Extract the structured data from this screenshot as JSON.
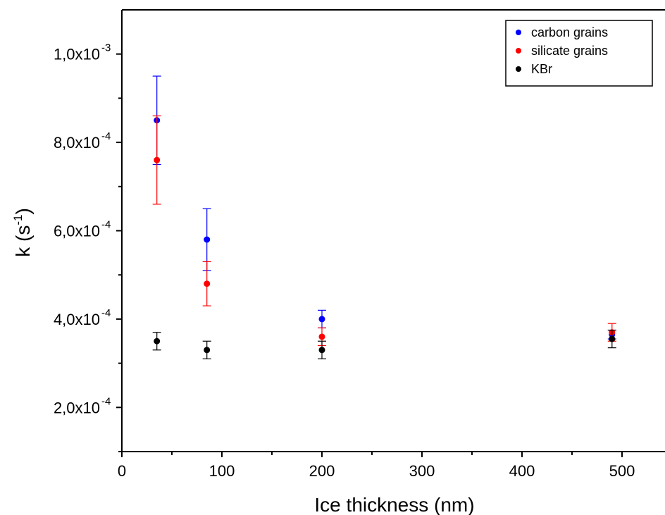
{
  "chart_data": {
    "type": "scatter",
    "title": "",
    "xlabel": "Ice thickness (nm)",
    "ylabel": {
      "base": "k (s",
      "sup": "-1",
      "close": ")"
    },
    "xlim": [
      0,
      540
    ],
    "ylim": [
      0.0001,
      0.0011
    ],
    "x_ticks": [
      {
        "value": 0,
        "label": "0"
      },
      {
        "value": 100,
        "label": "100"
      },
      {
        "value": 200,
        "label": "200"
      },
      {
        "value": 300,
        "label": "300"
      },
      {
        "value": 400,
        "label": "400"
      },
      {
        "value": 500,
        "label": "500"
      }
    ],
    "x_minor_ticks": [
      50,
      150,
      250,
      350,
      450
    ],
    "y_ticks": [
      {
        "value": 0.0002,
        "mant": "2,0x10",
        "exp": "-4"
      },
      {
        "value": 0.0004,
        "mant": "4,0x10",
        "exp": "-4"
      },
      {
        "value": 0.0006,
        "mant": "6,0x10",
        "exp": "-4"
      },
      {
        "value": 0.0008,
        "mant": "8,0x10",
        "exp": "-4"
      },
      {
        "value": 0.001,
        "mant": "1,0x10",
        "exp": "-3"
      }
    ],
    "y_minor_ticks": [
      0.0001,
      0.0003,
      0.0005,
      0.0007,
      0.0009
    ],
    "grid": false,
    "legend_position": "top-right",
    "series": [
      {
        "name": "carbon grains",
        "color": "#0000ff",
        "points": [
          {
            "x": 35,
            "y": 0.00085,
            "err": 0.0001
          },
          {
            "x": 85,
            "y": 0.00058,
            "err": 7e-05
          },
          {
            "x": 200,
            "y": 0.0004,
            "err": 2e-05
          },
          {
            "x": 490,
            "y": 0.000365,
            "err": 1e-05
          }
        ]
      },
      {
        "name": "silicate grains",
        "color": "#ff0000",
        "points": [
          {
            "x": 35,
            "y": 0.00076,
            "err": 0.0001
          },
          {
            "x": 85,
            "y": 0.00048,
            "err": 5e-05
          },
          {
            "x": 200,
            "y": 0.00036,
            "err": 2e-05
          },
          {
            "x": 490,
            "y": 0.00037,
            "err": 2e-05
          }
        ]
      },
      {
        "name": "KBr",
        "color": "#000000",
        "points": [
          {
            "x": 35,
            "y": 0.00035,
            "err": 2e-05
          },
          {
            "x": 85,
            "y": 0.00033,
            "err": 2e-05
          },
          {
            "x": 200,
            "y": 0.00033,
            "err": 2e-05
          },
          {
            "x": 490,
            "y": 0.000355,
            "err": 2e-05
          }
        ]
      }
    ]
  }
}
